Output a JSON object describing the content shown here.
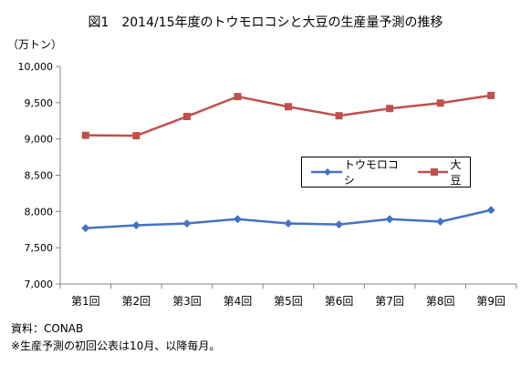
{
  "title": "図1　2014/15年度のトウモロコシと大豆の生産量予測の推移",
  "unit_label": "（万トン）",
  "notes": {
    "source": "資料：CONAB",
    "footnote": "※生産予測の初回公表は10月、以降毎月。"
  },
  "chart_data": {
    "type": "line",
    "categories": [
      "第1回",
      "第2回",
      "第3回",
      "第4回",
      "第5回",
      "第6回",
      "第7回",
      "第8回",
      "第9回"
    ],
    "ylim": [
      7000,
      10000
    ],
    "yticks": [
      7000,
      7500,
      8000,
      8500,
      9000,
      9500,
      10000
    ],
    "ytick_labels": [
      "7,000",
      "7,500",
      "8,000",
      "8,500",
      "9,000",
      "9,500",
      "10,000"
    ],
    "grid": false,
    "legend_position": "right-middle",
    "series": [
      {
        "name": "トウモロコシ",
        "color": "#4472C4",
        "marker": "diamond",
        "values": [
          7770,
          7810,
          7835,
          7895,
          7835,
          7820,
          7895,
          7860,
          8020
        ]
      },
      {
        "name": "大豆",
        "color": "#C0504D",
        "marker": "square",
        "values": [
          9050,
          9045,
          9310,
          9585,
          9445,
          9320,
          9420,
          9495,
          9600
        ]
      }
    ]
  }
}
